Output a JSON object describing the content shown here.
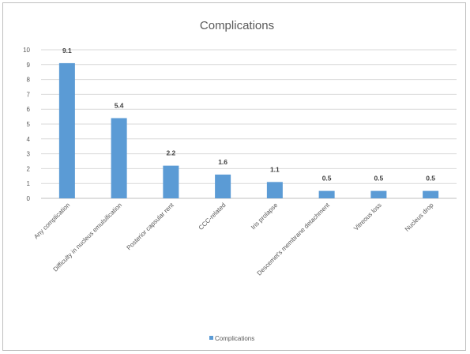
{
  "chart_data": {
    "type": "bar",
    "title": "Complications",
    "categories": [
      "Any complication",
      "Difficulty in nucleus emulsification",
      "Posterior capsular rent",
      "CCC-related",
      "Iris prolapse",
      "Descemet's membrane detachment",
      "Vitreous loss",
      "Nucleus drop"
    ],
    "series": [
      {
        "name": "Complications",
        "values": [
          9.1,
          5.4,
          2.2,
          1.6,
          1.1,
          0.5,
          0.5,
          0.5
        ],
        "color": "#5b9bd5"
      }
    ],
    "data_labels": [
      "9.1",
      "5.4",
      "2.2",
      "1.6",
      "1.1",
      "0.5",
      "0.5",
      "0.5"
    ],
    "yticks": [
      "0",
      "1",
      "2",
      "3",
      "4",
      "5",
      "6",
      "7",
      "8",
      "9",
      "10"
    ],
    "ylim": [
      0,
      10
    ],
    "xlabel": "",
    "ylabel": "",
    "grid": true,
    "legend_position": "bottom"
  }
}
